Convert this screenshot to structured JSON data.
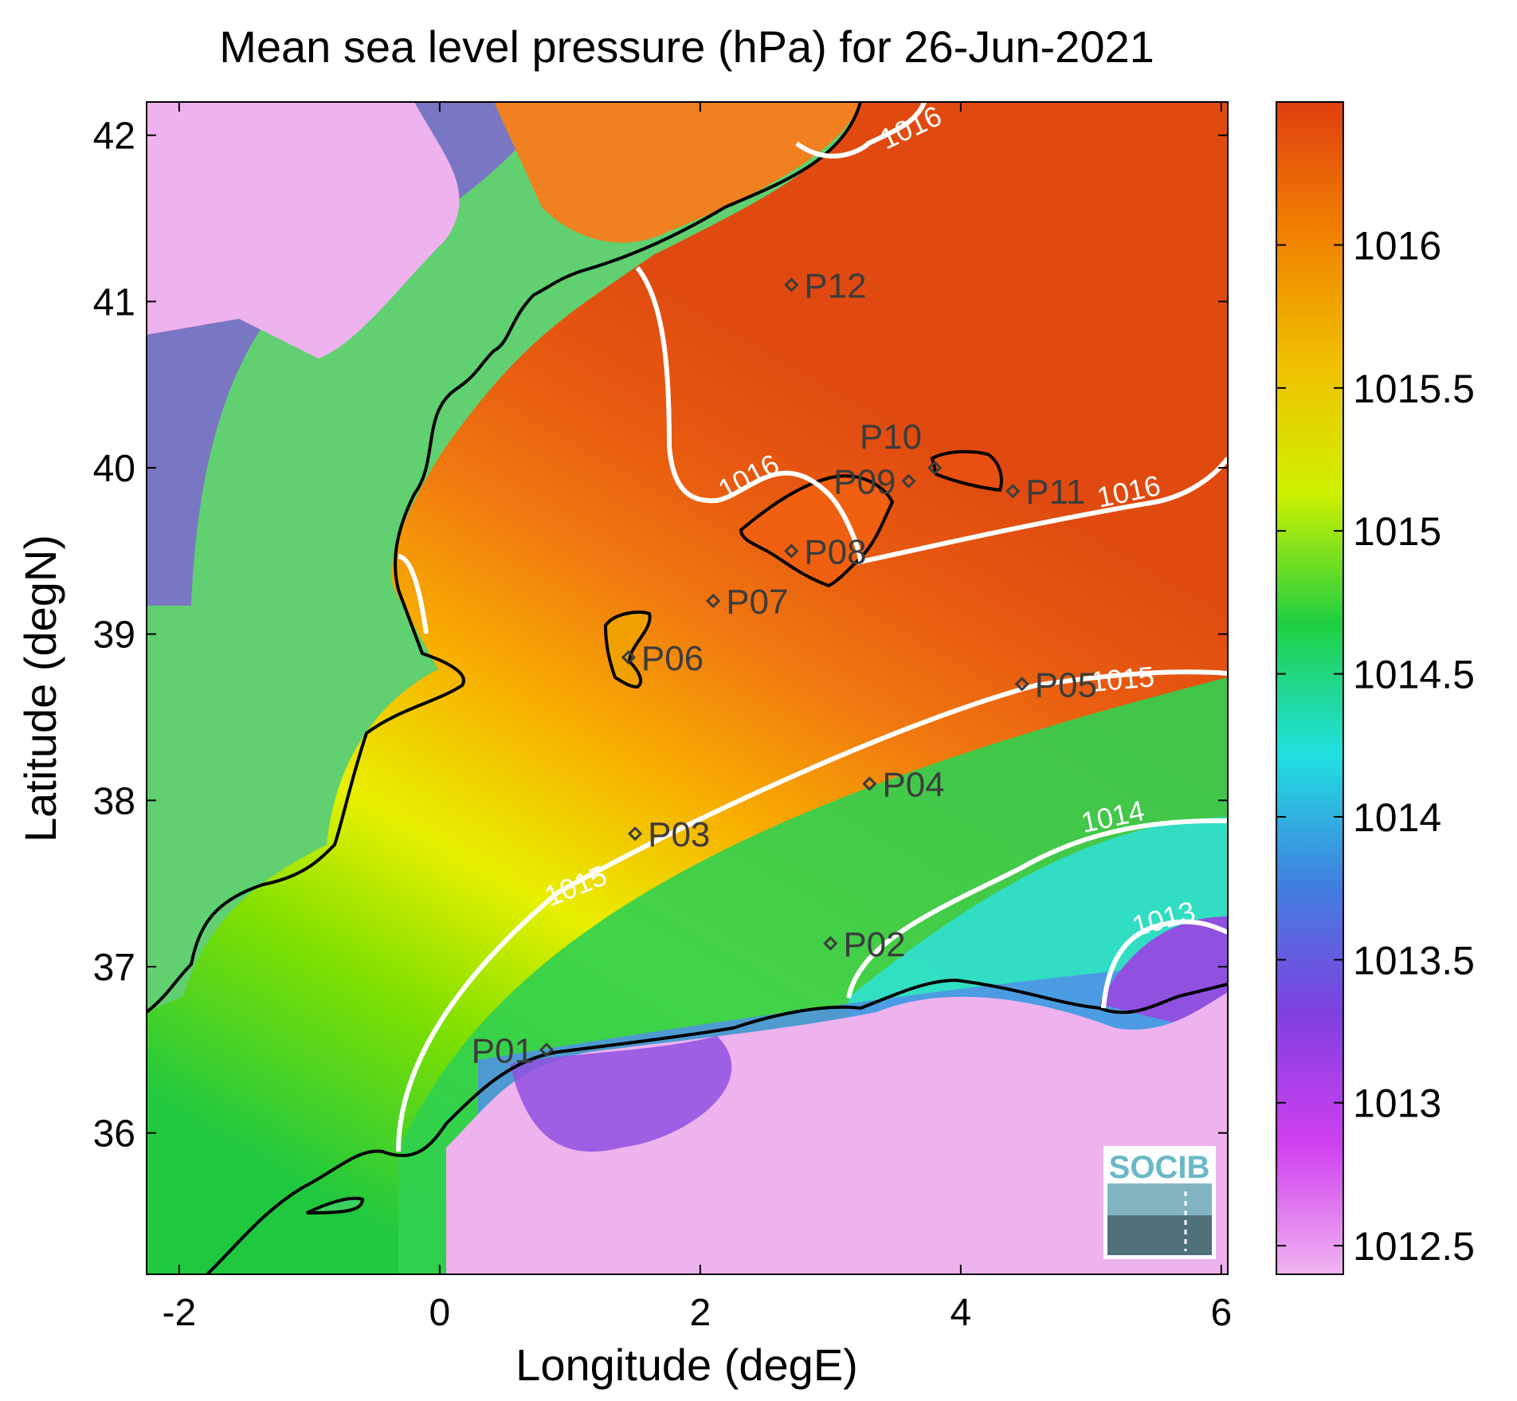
{
  "title": "Mean sea level pressure (hPa) for 26-Jun-2021",
  "xlabel": "Longitude (degE)",
  "ylabel": "Latitude (degN)",
  "x_ticks": [
    "-2",
    "0",
    "2",
    "4",
    "6"
  ],
  "y_ticks": [
    "42",
    "41",
    "40",
    "39",
    "38",
    "37",
    "36"
  ],
  "colorbar": {
    "min": 1012.4,
    "max": 1016.5,
    "ticks": [
      "1016",
      "1015.5",
      "1015",
      "1014.5",
      "1014",
      "1013.5",
      "1013",
      "1012.5"
    ],
    "colors": [
      "#f0b4f0",
      "#d040f0",
      "#8040e0",
      "#4080e0",
      "#20e0e0",
      "#20d040",
      "#d0f000",
      "#f0c000",
      "#f08000",
      "#e04010"
    ]
  },
  "contour_labels": [
    "1016",
    "1016",
    "1016",
    "1015",
    "1015",
    "1014",
    "1013"
  ],
  "logo": "SOCIB",
  "chart_data": {
    "type": "heatmap",
    "title": "Mean sea level pressure (hPa) for 26-Jun-2021",
    "xlabel": "Longitude (degE)",
    "ylabel": "Latitude (degN)",
    "xlim": [
      -2.25,
      6.05
    ],
    "ylim": [
      35.15,
      42.2
    ],
    "value_unit": "hPa",
    "value_range": [
      1012.4,
      1016.5
    ],
    "contour_levels": [
      1013,
      1014,
      1015,
      1016
    ],
    "stations": [
      {
        "name": "P01",
        "lon": 0.82,
        "lat": 36.5
      },
      {
        "name": "P02",
        "lon": 3.0,
        "lat": 37.14
      },
      {
        "name": "P03",
        "lon": 1.5,
        "lat": 37.8
      },
      {
        "name": "P04",
        "lon": 3.3,
        "lat": 38.1
      },
      {
        "name": "P05",
        "lon": 4.47,
        "lat": 38.7
      },
      {
        "name": "P06",
        "lon": 1.45,
        "lat": 38.86
      },
      {
        "name": "P07",
        "lon": 2.1,
        "lat": 39.2
      },
      {
        "name": "P08",
        "lon": 2.7,
        "lat": 39.5
      },
      {
        "name": "P09",
        "lon": 3.6,
        "lat": 39.92
      },
      {
        "name": "P10",
        "lon": 3.8,
        "lat": 40.0
      },
      {
        "name": "P11",
        "lon": 4.4,
        "lat": 39.86
      },
      {
        "name": "P12",
        "lon": 2.7,
        "lat": 41.1
      }
    ]
  }
}
